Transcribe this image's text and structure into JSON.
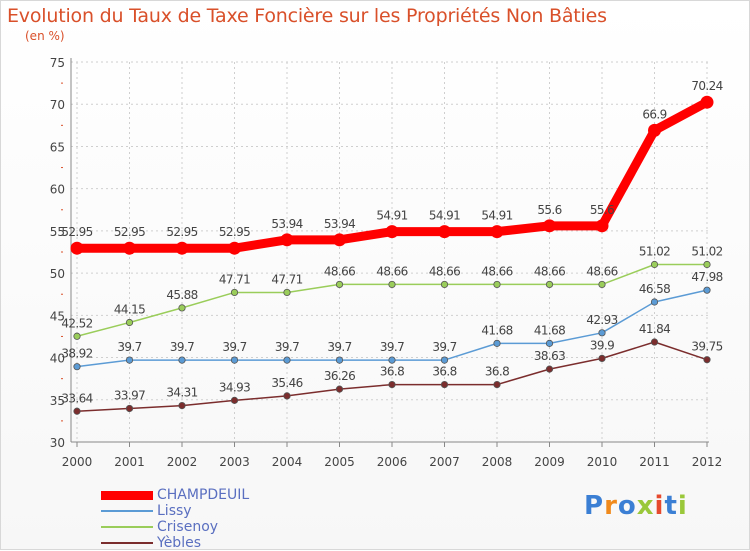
{
  "chart_data": {
    "type": "line",
    "title": "Evolution du Taux de Taxe Foncière sur les Propriétés Non Bâties",
    "subtitle": "(en %)",
    "x": [
      "2000",
      "2001",
      "2002",
      "2003",
      "2004",
      "2005",
      "2006",
      "2007",
      "2008",
      "2009",
      "2010",
      "2011",
      "2012"
    ],
    "ylim": [
      30,
      75
    ],
    "yticks": [
      30,
      35,
      40,
      45,
      50,
      55,
      60,
      65,
      70,
      75
    ],
    "grid": true,
    "legend_position": "bottom-left",
    "series": [
      {
        "name": "CHAMPDEUIL",
        "color": "#ff0000",
        "values": [
          52.95,
          52.95,
          52.95,
          52.95,
          53.94,
          53.94,
          54.91,
          54.91,
          54.91,
          55.6,
          55.6,
          66.9,
          70.24
        ],
        "labels": [
          "52.95",
          "52.95",
          "52.95",
          "52.95",
          "53.94",
          "53.94",
          "54.91",
          "54.91",
          "54.91",
          "55.6",
          "55.6",
          "66.9",
          "70.24"
        ]
      },
      {
        "name": "Lissy",
        "color": "#5b9bd5",
        "values": [
          38.92,
          39.7,
          39.7,
          39.7,
          39.7,
          39.7,
          39.7,
          39.7,
          41.68,
          41.68,
          42.93,
          46.58,
          47.98
        ],
        "labels": [
          "38.92",
          "39.7",
          "39.7",
          "39.7",
          "39.7",
          "39.7",
          "39.7",
          "39.7",
          "41.68",
          "41.68",
          "42.93",
          "46.58",
          "47.98"
        ]
      },
      {
        "name": "Crisenoy",
        "color": "#9acd5a",
        "values": [
          42.52,
          44.15,
          45.88,
          47.71,
          47.71,
          48.66,
          48.66,
          48.66,
          48.66,
          48.66,
          48.66,
          51.02,
          51.02
        ],
        "labels": [
          "42.52",
          "44.15",
          "45.88",
          "47.71",
          "47.71",
          "48.66",
          "48.66",
          "48.66",
          "48.66",
          "48.66",
          "48.66",
          "51.02",
          "51.02"
        ]
      },
      {
        "name": "Yèbles",
        "color": "#7b2d2d",
        "values": [
          33.64,
          33.97,
          34.31,
          34.93,
          35.46,
          36.26,
          36.8,
          36.8,
          36.8,
          38.63,
          39.9,
          41.84,
          39.75
        ],
        "labels": [
          "33.64",
          "33.97",
          "34.31",
          "34.93",
          "35.46",
          "36.26",
          "36.8",
          "36.8",
          "36.8",
          "38.63",
          "39.9",
          "41.84",
          "39.75"
        ]
      }
    ]
  },
  "logo": {
    "text": "Proxiti",
    "letter_colors": [
      "#3b7fd4",
      "#f08a1c",
      "#3b7fd4",
      "#9ac83a",
      "#e64a2e",
      "#3b7fd4",
      "#9ac83a"
    ]
  }
}
